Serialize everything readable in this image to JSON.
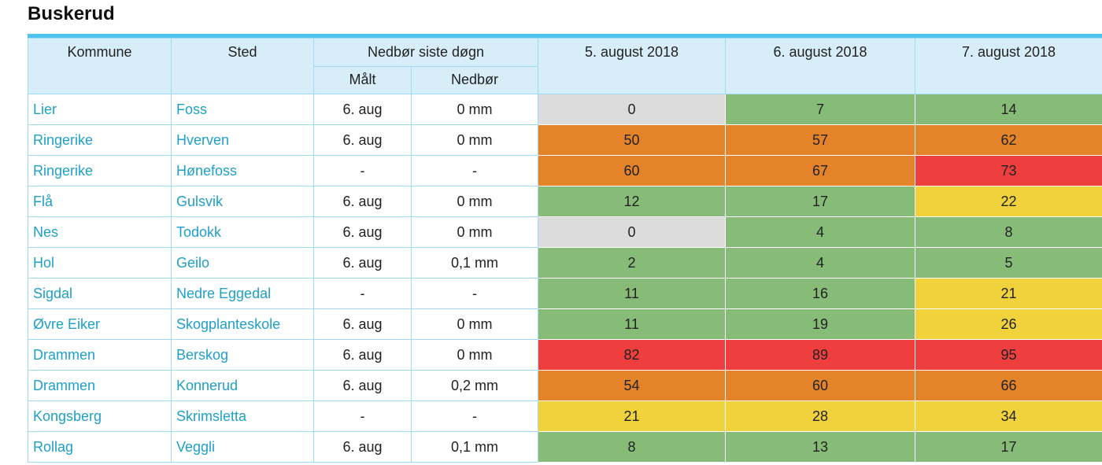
{
  "chart_data": {
    "type": "table",
    "title": "Buskerud",
    "columns": [
      "Kommune",
      "Sted",
      "Målt",
      "Nedbør",
      "5. august 2018",
      "6. august 2018",
      "7. august 2018"
    ],
    "values_by_date": {
      "5. august 2018": [
        0,
        50,
        60,
        12,
        0,
        2,
        11,
        11,
        82,
        54,
        21,
        8
      ],
      "6. august 2018": [
        7,
        57,
        67,
        17,
        4,
        4,
        16,
        19,
        89,
        60,
        28,
        13
      ],
      "7. august 2018": [
        14,
        62,
        73,
        22,
        8,
        5,
        21,
        26,
        95,
        66,
        34,
        17
      ]
    }
  },
  "page": {
    "title": "Buskerud"
  },
  "header": {
    "kommune": "Kommune",
    "sted": "Sted",
    "group": "Nedbør siste døgn",
    "maalt": "Målt",
    "nedbor": "Nedbør",
    "dates": [
      "5. august 2018",
      "6. august 2018",
      "7. august 2018"
    ]
  },
  "colors": {
    "gray": "#dcdcdc",
    "green": "#86bb78",
    "yellow": "#f0d23c",
    "orange": "#e5832b",
    "red": "#ee3e3e",
    "accent": "#4fc3ef"
  },
  "rows": [
    {
      "kommune": "Lier",
      "sted": "Foss",
      "maalt": "6. aug",
      "nedbor": "0 mm",
      "values": [
        "0",
        "7",
        "14"
      ],
      "levels": [
        "gray",
        "green",
        "green"
      ]
    },
    {
      "kommune": "Ringerike",
      "sted": "Hverven",
      "maalt": "6. aug",
      "nedbor": "0 mm",
      "values": [
        "50",
        "57",
        "62"
      ],
      "levels": [
        "orange",
        "orange",
        "orange"
      ]
    },
    {
      "kommune": "Ringerike",
      "sted": "Hønefoss",
      "maalt": "-",
      "nedbor": "-",
      "values": [
        "60",
        "67",
        "73"
      ],
      "levels": [
        "orange",
        "orange",
        "red"
      ]
    },
    {
      "kommune": "Flå",
      "sted": "Gulsvik",
      "maalt": "6. aug",
      "nedbor": "0 mm",
      "values": [
        "12",
        "17",
        "22"
      ],
      "levels": [
        "green",
        "green",
        "yellow"
      ]
    },
    {
      "kommune": "Nes",
      "sted": "Todokk",
      "maalt": "6. aug",
      "nedbor": "0 mm",
      "values": [
        "0",
        "4",
        "8"
      ],
      "levels": [
        "gray",
        "green",
        "green"
      ]
    },
    {
      "kommune": "Hol",
      "sted": "Geilo",
      "maalt": "6. aug",
      "nedbor": "0,1 mm",
      "values": [
        "2",
        "4",
        "5"
      ],
      "levels": [
        "green",
        "green",
        "green"
      ]
    },
    {
      "kommune": "Sigdal",
      "sted": "Nedre Eggedal",
      "maalt": "-",
      "nedbor": "-",
      "values": [
        "11",
        "16",
        "21"
      ],
      "levels": [
        "green",
        "green",
        "yellow"
      ]
    },
    {
      "kommune": "Øvre Eiker",
      "sted": "Skogplanteskole",
      "maalt": "6. aug",
      "nedbor": "0 mm",
      "values": [
        "11",
        "19",
        "26"
      ],
      "levels": [
        "green",
        "green",
        "yellow"
      ]
    },
    {
      "kommune": "Drammen",
      "sted": "Berskog",
      "maalt": "6. aug",
      "nedbor": "0 mm",
      "values": [
        "82",
        "89",
        "95"
      ],
      "levels": [
        "red",
        "red",
        "red"
      ]
    },
    {
      "kommune": "Drammen",
      "sted": "Konnerud",
      "maalt": "6. aug",
      "nedbor": "0,2 mm",
      "values": [
        "54",
        "60",
        "66"
      ],
      "levels": [
        "orange",
        "orange",
        "orange"
      ]
    },
    {
      "kommune": "Kongsberg",
      "sted": "Skrimsletta",
      "maalt": "-",
      "nedbor": "-",
      "values": [
        "21",
        "28",
        "34"
      ],
      "levels": [
        "yellow",
        "yellow",
        "yellow"
      ]
    },
    {
      "kommune": "Rollag",
      "sted": "Veggli",
      "maalt": "6. aug",
      "nedbor": "0,1 mm",
      "values": [
        "8",
        "13",
        "17"
      ],
      "levels": [
        "green",
        "green",
        "green"
      ]
    }
  ]
}
